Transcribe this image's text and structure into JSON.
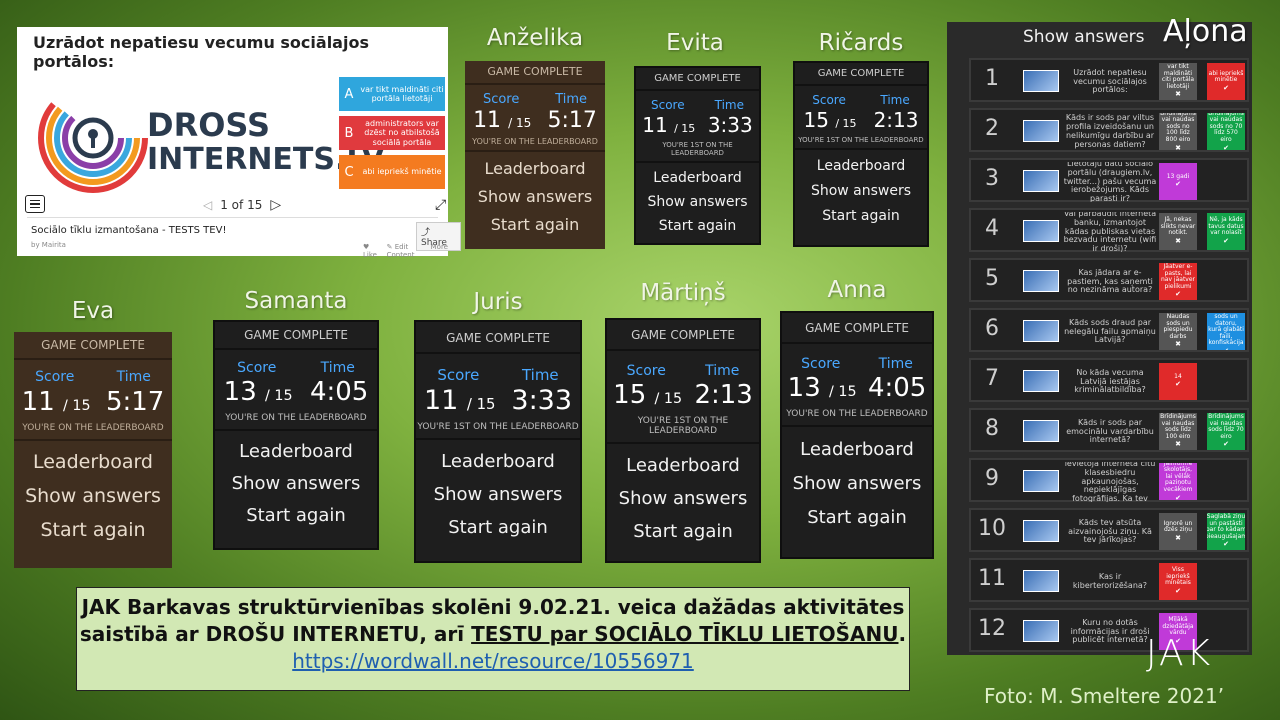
{
  "dross": {
    "question": "Uzrādot nepatiesu vecumu sociālajos portālos:",
    "brand_line1": "DROSS",
    "brand_line2": "INTERNETS.LV",
    "options": [
      {
        "letter": "A",
        "text": "var tikt maldināti citi portāla lietotāji",
        "color": "#2fa6dd"
      },
      {
        "letter": "B",
        "text": "administrators var dzēst no atbilstošā sociālā portāla",
        "color": "#e03a3e"
      },
      {
        "letter": "C",
        "text": "abi iepriekš minētie",
        "color": "#f47b20"
      }
    ],
    "pager": "1 of 15",
    "title": "Sociālo tīklu izmantošana - TESTS TEV!",
    "by": "by Mairita",
    "share": "Share",
    "like": "Like",
    "edit": "Edit Content",
    "more": "More"
  },
  "labels": {
    "game_complete": "GAME COMPLETE",
    "score": "Score",
    "time": "Time",
    "leaderboard_msg": "YOU'RE ON THE LEADERBOARD",
    "first_msg": "YOU'RE 1ST ON THE LEADERBOARD",
    "of": "/ 15",
    "btn_leaderboard": "Leaderboard",
    "btn_show": "Show answers",
    "btn_start": "Start again"
  },
  "students": [
    {
      "name": "Anželika",
      "score": "11",
      "time": "5:17",
      "msg": "YOU'RE ON THE LEADERBOARD",
      "theme": "brown"
    },
    {
      "name": "Evita",
      "score": "11",
      "time": "3:33",
      "msg": "YOU'RE 1ST ON THE LEADERBOARD",
      "theme": "dark"
    },
    {
      "name": "Ričards",
      "score": "15",
      "time": "2:13",
      "msg": "YOU'RE 1ST ON THE LEADERBOARD",
      "theme": "dark"
    },
    {
      "name": "Eva",
      "score": "11",
      "time": "5:17",
      "msg": "YOU'RE ON THE LEADERBOARD",
      "theme": "brown"
    },
    {
      "name": "Samanta",
      "score": "13",
      "time": "4:05",
      "msg": "YOU'RE ON THE LEADERBOARD",
      "theme": "dark"
    },
    {
      "name": "Juris",
      "score": "11",
      "time": "3:33",
      "msg": "YOU'RE 1ST ON THE LEADERBOARD",
      "theme": "dark"
    },
    {
      "name": "Mārtiņš",
      "score": "15",
      "time": "2:13",
      "msg": "YOU'RE 1ST ON THE LEADERBOARD",
      "theme": "dark"
    },
    {
      "name": "Anna",
      "score": "13",
      "time": "4:05",
      "msg": "YOU'RE ON THE LEADERBOARD",
      "theme": "dark"
    }
  ],
  "answers_panel": {
    "title": "Show answers",
    "name": "Aļona",
    "rows": [
      {
        "n": "1",
        "q": "Uzrādot nepatiesu vecumu sociālajos portālos:",
        "a1": "var tikt maldināti citi portāla lietotāji",
        "a1c": "#555555",
        "a1m": "✖",
        "a2": "abi iepriekš minētie",
        "a2c": "#e02a2a",
        "a2m": "✔"
      },
      {
        "n": "2",
        "q": "Kāds ir sods par viltus profila izveidošanu un nelikumīgu darbību ar personas datiem?",
        "a1": "Brīdinājums vai naudas sods no 100 līdz 800 eiro",
        "a1c": "#555555",
        "a1m": "✖",
        "a2": "Brīdinājums vai naudas sods no 70 līdz 570 eiro",
        "a2c": "#12a34a",
        "a2m": "✔"
      },
      {
        "n": "3",
        "q": "Lietotāju datu sociālo portālu (draugiem.lv, twitter...) pašu vecuma ierobežojums. Kāds parasti ir?",
        "a1": "13 gadi",
        "a1c": "#c03ad8",
        "a1m": "✔",
        "a2": "",
        "a2c": "",
        "a2m": ""
      },
      {
        "n": "4",
        "q": "Vai pārbaudīt interneta banku, izmantojot kādas publiskas vietas bezvadu internetu (wifi ir droši)?",
        "a1": "Jā, nekas slikts nevar notikt.",
        "a1c": "#555555",
        "a1m": "✖",
        "a2": "Nē, ja kāds tavus datus var nolasīt",
        "a2c": "#12a34a",
        "a2m": "✔"
      },
      {
        "n": "5",
        "q": "Kas jādara ar e-pastiem, kas saņemti no nezināma autora?",
        "a1": "Jāatver e-pasts, lai nav jāatver pielikumi",
        "a1c": "#e02a2a",
        "a1m": "✔",
        "a2": "",
        "a2c": "",
        "a2m": ""
      },
      {
        "n": "6",
        "q": "Kāds sods draud par nelegālu failu apmaiņu Latvijā?",
        "a1": "Naudas sods un piespiedu darbs",
        "a1c": "#555555",
        "a1m": "✖",
        "a2": "Naudas sods un datoru, kurā glabāti faili, konfiskācija",
        "a2c": "#1e8fe0",
        "a2m": "✔"
      },
      {
        "n": "7",
        "q": "No kāda vecuma Latvijā iestājas kriminālatbildība?",
        "a1": "14",
        "a1c": "#e02a2a",
        "a1m": "✔",
        "a2": "",
        "a2c": "",
        "a2m": ""
      },
      {
        "n": "8",
        "q": "Kāds ir sods par emocinālu vardarbību internetā?",
        "a1": "Brīdinājums vai naudas sods līdz 100 eiro",
        "a1c": "#555555",
        "a1m": "✖",
        "a2": "Brīdinājums vai naudas sods līdz 70 eiro",
        "a2c": "#12a34a",
        "a2m": "✔"
      },
      {
        "n": "9",
        "q": "Kādā tavs klasesbiedrs ievietoja internetā citu klasesbiedru apkaunojošas, nepieklājīgas fotogrāfijas. Ka tev jārīkojas?",
        "a1": "Jāinformē skolotājs, lai vēlāk paziņotu vecākiem",
        "a1c": "#c03ad8",
        "a1m": "✔",
        "a2": "",
        "a2c": "",
        "a2m": ""
      },
      {
        "n": "10",
        "q": "Kāds tev atsūta aizvainojošu ziņu. Kā tev jārīkojas?",
        "a1": "Ignorē un dzēs ziņu",
        "a1c": "#555555",
        "a1m": "✖",
        "a2": "Saglabā ziņu un pastāsti par to kādam pieaugušajam",
        "a2c": "#12a34a",
        "a2m": "✔"
      },
      {
        "n": "11",
        "q": "Kas ir kiberterorizēšana?",
        "a1": "Viss iepriekš minētais",
        "a1c": "#e02a2a",
        "a1m": "✔",
        "a2": "",
        "a2c": "",
        "a2m": ""
      },
      {
        "n": "12",
        "q": "Kuru no dotās informācijas ir droši publicēt internetā?",
        "a1": "Mīļākā dziedātāja vārdu",
        "a1c": "#c03ad8",
        "a1m": "✔",
        "a2": "",
        "a2c": "",
        "a2m": ""
      }
    ]
  },
  "caption": {
    "line1": "JAK Barkavas struktūrvienības skolēni 9.02.21. veica dažādas aktivitātes",
    "line2_pre": "saistībā ar DROŠU INTERNETU, arī ",
    "line2_u": "TESTU par SOCIĀLO TĪKLU LIETOŠANU",
    "line2_post": ".",
    "link": "https://wordwall.net/resource/10556971"
  },
  "logo_text": "JAK",
  "photo_credit": "Foto: M. Smeltere 2021’"
}
